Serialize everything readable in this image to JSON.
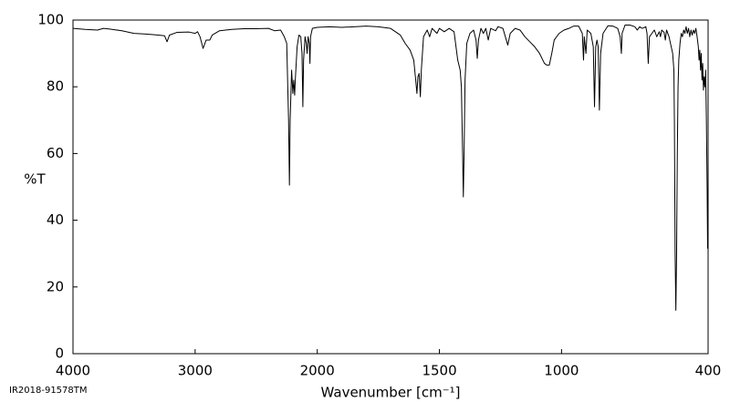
{
  "chart_data": {
    "type": "line",
    "xlabel": "Wavenumber [cm⁻¹]",
    "ylabel": "%T",
    "footer": "IR2018-91578TM",
    "xlim": [
      4000,
      400
    ],
    "ylim": [
      0,
      100
    ],
    "x_split": 2000,
    "x_split_ratio": 2,
    "xticks": [
      4000,
      3000,
      2000,
      1500,
      1000,
      400
    ],
    "yticks": [
      0,
      20,
      40,
      60,
      80,
      100
    ],
    "grid": false,
    "color": "#000000",
    "x": [
      4000,
      3900,
      3800,
      3750,
      3700,
      3600,
      3500,
      3400,
      3300,
      3250,
      3230,
      3210,
      3150,
      3050,
      3000,
      2980,
      2960,
      2935,
      2910,
      2880,
      2860,
      2800,
      2700,
      2600,
      2500,
      2400,
      2350,
      2300,
      2270,
      2250,
      2235,
      2228,
      2222,
      2210,
      2200,
      2193,
      2185,
      2180,
      2165,
      2150,
      2135,
      2125,
      2118,
      2112,
      2100,
      2090,
      2083,
      2075,
      2065,
      2060,
      2055,
      2040,
      2000,
      1950,
      1900,
      1850,
      1800,
      1750,
      1700,
      1680,
      1660,
      1640,
      1620,
      1605,
      1597,
      1592,
      1588,
      1583,
      1578,
      1574,
      1565,
      1550,
      1540,
      1530,
      1510,
      1500,
      1480,
      1460,
      1440,
      1425,
      1415,
      1410,
      1405,
      1402,
      1399,
      1395,
      1388,
      1375,
      1360,
      1350,
      1345,
      1340,
      1330,
      1320,
      1310,
      1300,
      1290,
      1270,
      1260,
      1240,
      1230,
      1220,
      1210,
      1190,
      1170,
      1150,
      1130,
      1110,
      1090,
      1070,
      1060,
      1050,
      1040,
      1030,
      1010,
      990,
      970,
      950,
      930,
      915,
      910,
      907,
      900,
      895,
      880,
      870,
      865,
      860,
      855,
      850,
      845,
      840,
      830,
      810,
      790,
      770,
      760,
      755,
      752,
      740,
      720,
      700,
      690,
      680,
      670,
      655,
      650,
      645,
      640,
      630,
      620,
      615,
      610,
      600,
      595,
      590,
      580,
      575,
      570,
      560,
      545,
      540,
      538,
      535,
      532,
      529,
      526,
      523,
      520,
      515,
      510,
      505,
      500,
      495,
      490,
      485,
      480,
      475,
      470,
      465,
      460,
      455,
      450,
      445,
      440,
      437,
      434,
      431,
      428,
      425,
      422,
      419,
      416,
      413,
      410,
      407,
      404,
      402
    ],
    "values": [
      97.5,
      97.2,
      97,
      97.5,
      97.3,
      96.8,
      96,
      95.8,
      95.5,
      95.3,
      93.5,
      95.5,
      96.3,
      96.4,
      96,
      96.5,
      95,
      91.5,
      94,
      94,
      95.5,
      96.8,
      97.2,
      97.4,
      97.4,
      97.5,
      96.8,
      97,
      95,
      93,
      70,
      50.5,
      70,
      85,
      78,
      82,
      77.5,
      82,
      92,
      95.5,
      95,
      90,
      74,
      88,
      95,
      93,
      90,
      95,
      93,
      87,
      95,
      97.5,
      97.8,
      98,
      97.8,
      98,
      98.2,
      98,
      97.5,
      96.5,
      95.5,
      93,
      91,
      88,
      82,
      78,
      83,
      84,
      77,
      85,
      95,
      97,
      95,
      97.5,
      96,
      97.5,
      96.5,
      97.5,
      96.5,
      88,
      85,
      80,
      60,
      47,
      60,
      82,
      93,
      96,
      97,
      94,
      88.5,
      94,
      97.5,
      96,
      97.5,
      94,
      97.5,
      96.8,
      98,
      97.5,
      95,
      92.5,
      96,
      97.5,
      97,
      95,
      93.5,
      92,
      90,
      87,
      86.5,
      86.5,
      90,
      94,
      96,
      97,
      97.5,
      98.2,
      98.2,
      96,
      88,
      95,
      90,
      97,
      96,
      92,
      74,
      92,
      94,
      92,
      73,
      90,
      96,
      98.3,
      98.2,
      97.5,
      95,
      90,
      96,
      98.5,
      98.5,
      98,
      97,
      98,
      97.5,
      98,
      96,
      87,
      95,
      96,
      97,
      96,
      95,
      96.5,
      95,
      97,
      96.3,
      94,
      97,
      95,
      90,
      85,
      70,
      30,
      13,
      30,
      60,
      80,
      88,
      93,
      96,
      95,
      97,
      96,
      98,
      96,
      97.5,
      95,
      97,
      95.5,
      97,
      96,
      97.5,
      95,
      92,
      88,
      91,
      85,
      90,
      82,
      87,
      79,
      83,
      80,
      85,
      70,
      50,
      31.5
    ]
  }
}
